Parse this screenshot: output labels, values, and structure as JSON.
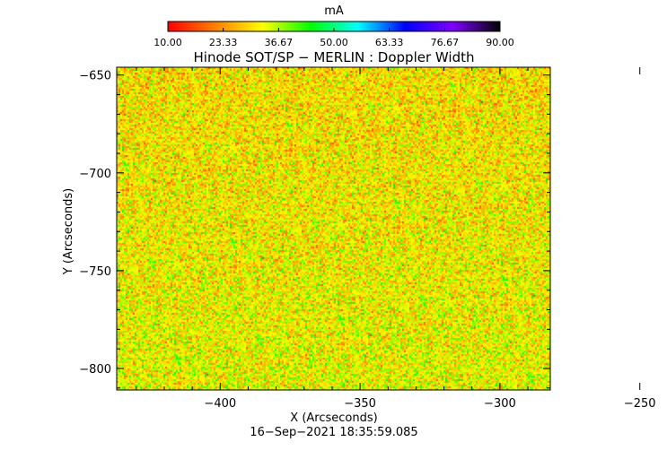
{
  "chart_data": {
    "type": "heatmap",
    "title": "Hinode SOT/SP − MERLIN : Doppler Width",
    "xlabel": "X (Arcseconds)",
    "ylabel": "Y (Arcseconds)",
    "timestamp": "16−Sep−2021 18:35:59.085",
    "colorbar": {
      "unit": "mA",
      "range": [
        10.0,
        90.0
      ],
      "tick_values": [
        10.0,
        23.33,
        36.67,
        50.0,
        63.33,
        76.67,
        90.0
      ],
      "tick_labels": [
        "10.00",
        "23.33",
        "36.67",
        "50.00",
        "63.33",
        "76.67",
        "90.00"
      ],
      "colormap": [
        "#ff0000",
        "#ff8000",
        "#ffff00",
        "#00ff00",
        "#00ffff",
        "#0000ff",
        "#8000ff",
        "#000000"
      ]
    },
    "xlim": [
      -437,
      -282
    ],
    "ylim": [
      -811,
      -646
    ],
    "x_ticks": [
      -400,
      -350,
      -300,
      -250
    ],
    "x_tick_labels": [
      "−400",
      "−350",
      "−300",
      "−250"
    ],
    "y_ticks": [
      -650,
      -700,
      -750,
      -800
    ],
    "y_tick_labels": [
      "−650",
      "−700",
      "−750",
      "−800"
    ],
    "value_distribution": {
      "typical_range": [
        15,
        45
      ],
      "dominant_colors": [
        "#ffff00",
        "#ff8000",
        "#80ff00",
        "#ff0000",
        "#00ff00"
      ],
      "texture": "fine-grained noisy granulation"
    }
  }
}
